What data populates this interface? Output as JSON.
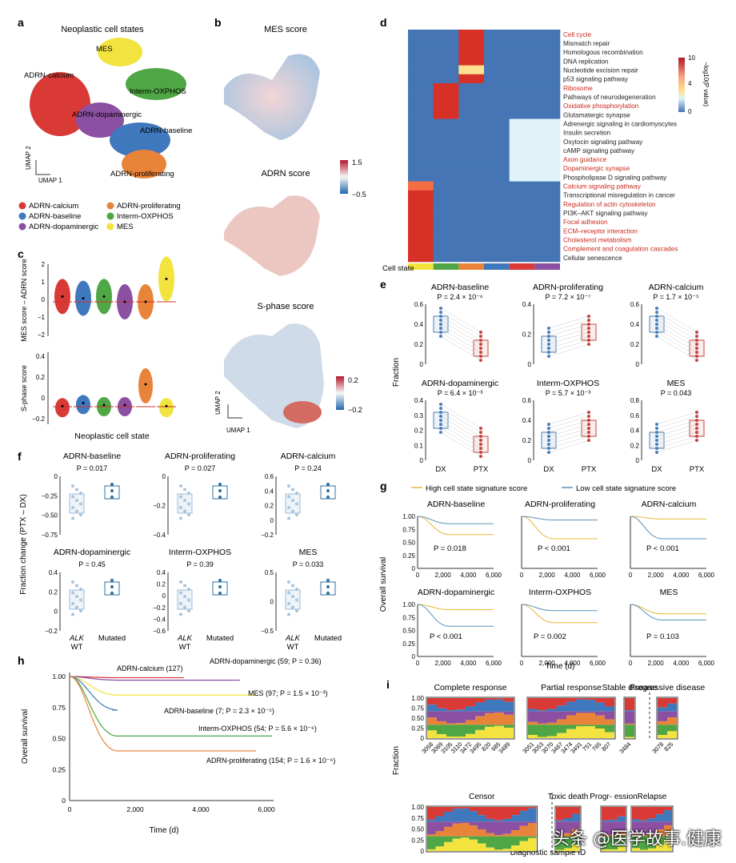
{
  "panel_letters": {
    "a": "a",
    "b": "b",
    "c": "c",
    "d": "d",
    "e": "e",
    "f": "f",
    "g": "g",
    "h": "h",
    "i": "i"
  },
  "a": {
    "title": "Neoplastic cell states",
    "umap_y": "UMAP 2",
    "umap_x": "UMAP 1",
    "cluster_labels": [
      "MES",
      "ADRN-calcium",
      "Interm-OXPHOS",
      "ADRN-dopaminergic",
      "ADRN-baseline",
      "ADRN-proliferating"
    ],
    "legend": [
      {
        "name": "ADRN-calcium",
        "color": "#d93a35"
      },
      {
        "name": "ADRN-proliferating",
        "color": "#e8843a"
      },
      {
        "name": "ADRN-baseline",
        "color": "#3f78bd"
      },
      {
        "name": "Interm-OXPHOS",
        "color": "#4fa644"
      },
      {
        "name": "ADRN-dopaminergic",
        "color": "#8c50a2"
      },
      {
        "name": "MES",
        "color": "#f2e33f"
      }
    ]
  },
  "b": {
    "titles": [
      "MES score",
      "ADRN score",
      "S-phase score"
    ],
    "cb1_ticks": [
      "1.5",
      "−0.5"
    ],
    "cb2_ticks": [
      "0.2",
      "−0.2"
    ],
    "umap_y": "UMAP 2",
    "umap_x": "UMAP 1"
  },
  "c": {
    "ylabel_top": "MES score – ADRN score",
    "yticks_top": [
      "2",
      "1",
      "0",
      "−1",
      "−2"
    ],
    "ylabel_bottom": "S-phase score",
    "yticks_bottom": [
      "0.4",
      "0.2",
      "0",
      "−0.2"
    ],
    "xlabel": "Neoplastic cell state",
    "colors": [
      "#d93a35",
      "#3f78bd",
      "#4fa644",
      "#8c50a2",
      "#e8843a",
      "#f2e33f"
    ]
  },
  "d": {
    "pathways": [
      {
        "name": "Cell cycle",
        "red": true
      },
      {
        "name": "Mismatch repair",
        "red": false
      },
      {
        "name": "Homologous recombination",
        "red": false
      },
      {
        "name": "DNA replication",
        "red": false
      },
      {
        "name": "Nucleotide excision repair",
        "red": false
      },
      {
        "name": "p53 signaling pathway",
        "red": false
      },
      {
        "name": "Ribosome",
        "red": true
      },
      {
        "name": "Pathways of neurodegeneration",
        "red": false
      },
      {
        "name": "Oxidative phosphorylation",
        "red": true
      },
      {
        "name": "Glutamatergic synapse",
        "red": false
      },
      {
        "name": "Adrenergic signaling in cardiomyocytes",
        "red": false
      },
      {
        "name": "Insulin secretion",
        "red": false
      },
      {
        "name": "Oxytocin signaling pathway",
        "red": false
      },
      {
        "name": "cAMP signaling pathway",
        "red": false
      },
      {
        "name": "Axon guidance",
        "red": true
      },
      {
        "name": "Dopaminergic synapse",
        "red": true
      },
      {
        "name": "Phospholipase D signaling pathway",
        "red": false
      },
      {
        "name": "Calcium signaling pathway",
        "red": true
      },
      {
        "name": "Transcriptional misregulation in cancer",
        "red": false
      },
      {
        "name": "Regulation of actin cytoskeleton",
        "red": true
      },
      {
        "name": "PI3K–AKT signaling pathway",
        "red": false
      },
      {
        "name": "Focal adhesion",
        "red": true
      },
      {
        "name": "ECM–receptor interaction",
        "red": true
      },
      {
        "name": "Cholesterol metabolism",
        "red": true
      },
      {
        "name": "Complement and coagulation cascades",
        "red": true
      },
      {
        "name": "Cellular senescence",
        "red": false
      }
    ],
    "cell_state_label": "Cell state",
    "cell_state_colors": [
      "#f2e33f",
      "#4fa644",
      "#e8843a",
      "#3f78bd",
      "#d93a35",
      "#8c50a2"
    ],
    "colorbar_label": "−log10(P value)",
    "colorbar_ticks": [
      "10",
      "4",
      "0"
    ]
  },
  "e": {
    "ylabel": "Fraction",
    "panels": [
      {
        "title": "ADRN-baseline",
        "p": "P = 2.4 × 10⁻⁶",
        "yticks": [
          "0.6",
          "0.4",
          "0.2",
          "0"
        ],
        "ymax": 0.7
      },
      {
        "title": "ADRN-proliferating",
        "p": "P = 7.2 × 10⁻⁷",
        "yticks": [
          "0.4",
          "0.2",
          "0"
        ],
        "ymax": 0.5
      },
      {
        "title": "ADRN-calcium",
        "p": "P = 1.7 × 10⁻⁵",
        "yticks": [
          "0.6",
          "0.4",
          "0.2",
          "0"
        ],
        "ymax": 0.7
      },
      {
        "title": "ADRN-dopaminergic",
        "p": "P = 6.4 × 10⁻³",
        "yticks": [
          "0.4",
          "0.3",
          "0.2",
          "0.1",
          "0"
        ],
        "ymax": 0.45
      },
      {
        "title": "Interm-OXPHOS",
        "p": "P = 5.7 × 10⁻³",
        "yticks": [
          "0.6",
          "0.4",
          "0.2",
          "0"
        ],
        "ymax": 0.7
      },
      {
        "title": "MES",
        "p": "P = 0.043",
        "yticks": [
          "0.8",
          "0.6",
          "0.4",
          "0.2",
          "0"
        ],
        "ymax": 0.9
      }
    ],
    "xticks": [
      "DX",
      "PTX"
    ]
  },
  "f": {
    "ylabel": "Fraction change (PTX – DX)",
    "panels": [
      {
        "title": "ADRN-baseline",
        "p": "P = 0.017",
        "yticks": [
          "0",
          "−0.25",
          "−0.50",
          "−0.75"
        ]
      },
      {
        "title": "ADRN-proliferating",
        "p": "P = 0.027",
        "yticks": [
          "0",
          "−0.2",
          "−0.4"
        ]
      },
      {
        "title": "ADRN-calcium",
        "p": "P = 0.24",
        "yticks": [
          "0.6",
          "0.4",
          "0.2",
          "0",
          "−0.2"
        ]
      },
      {
        "title": "ADRN-dopaminergic",
        "p": "P = 0.45",
        "yticks": [
          "0.4",
          "0.2",
          "0",
          "−0.2"
        ]
      },
      {
        "title": "Interm-OXPHOS",
        "p": "P = 0.39",
        "yticks": [
          "0.4",
          "0.2",
          "0",
          "−0.2",
          "−0.4",
          "−0.6"
        ]
      },
      {
        "title": "MES",
        "p": "P = 0.033",
        "yticks": [
          "0.5",
          "0",
          "−0.5"
        ]
      }
    ],
    "xtick_wt_top": "ALK",
    "xtick_wt_bottom": "WT",
    "xtick_mut": "Mutated"
  },
  "g": {
    "legend_high": "High cell state signature score",
    "legend_low": "Low cell state signature score",
    "high_color": "#e8b83a",
    "low_color": "#5b93b8",
    "ylabel": "Overall survival",
    "xlabel": "Time (d)",
    "yticks": [
      "1.00",
      "0.75",
      "0.50",
      "0.25",
      "0"
    ],
    "xticks": [
      "0",
      "2,000",
      "4,000",
      "6,000"
    ],
    "panels": [
      {
        "title": "ADRN-baseline",
        "p": "P = 0.018"
      },
      {
        "title": "ADRN-proliferating",
        "p": "P < 0.001"
      },
      {
        "title": "ADRN-calcium",
        "p": "P < 0.001"
      },
      {
        "title": "ADRN-dopaminergic",
        "p": "P < 0.001"
      },
      {
        "title": "Interm-OXPHOS",
        "p": "P = 0.002"
      },
      {
        "title": "MES",
        "p": "P = 0.103"
      }
    ]
  },
  "h": {
    "ylabel": "Overall survival",
    "xlabel": "Time (d)",
    "yticks": [
      "1.00",
      "0.75",
      "0.50",
      "0.25",
      "0"
    ],
    "xticks": [
      "0",
      "2,000",
      "4,000",
      "6,000"
    ],
    "curve_labels": [
      {
        "text": "ADRN-calcium (127)",
        "color": "#d93a35"
      },
      {
        "text": "ADRN-dopaminergic (59; P = 0.36)",
        "color": "#8c50a2"
      },
      {
        "text": "MES (97; P = 1.5 × 10⁻³)",
        "color": "#f2e33f"
      },
      {
        "text": "ADRN-baseline (7; P = 2.3 × 10⁻⁵)",
        "color": "#3f78bd"
      },
      {
        "text": "Interm-OXPHOS (54; P = 5.6 × 10⁻⁶)",
        "color": "#4fa644"
      },
      {
        "text": "ADRN-proliferating (154; P = 1.6 × 10⁻⁶)",
        "color": "#e8843a"
      }
    ]
  },
  "i": {
    "top_groups": [
      "Complete response",
      "Partial response",
      "Stable disease",
      "Progressive disease"
    ],
    "bottom_groups": [
      "Censor",
      "Toxic death",
      "Progr- ession",
      "Relapse"
    ],
    "ylabel": "Fraction",
    "yticks": [
      "1.00",
      "0.75",
      "0.50",
      "0.25",
      "0"
    ],
    "xlabel": "Diagnostic sample ID",
    "top_ids": [
      "3058",
      "3069",
      "3105",
      "3110",
      "3472",
      "3495",
      "820",
      "985",
      "3489",
      "3051",
      "3053",
      "3070",
      "3467",
      "3474",
      "3491",
      "751",
      "765",
      "807",
      "3484",
      "3078",
      "825"
    ],
    "bottom_ids": [
      "3051",
      "3053",
      "3058",
      "3069",
      "3070",
      "3105",
      "3467",
      "3472",
      "3474",
      "3491",
      "3495",
      "820",
      "985"
    ]
  },
  "watermark": "头条 @医学故事.健康"
}
